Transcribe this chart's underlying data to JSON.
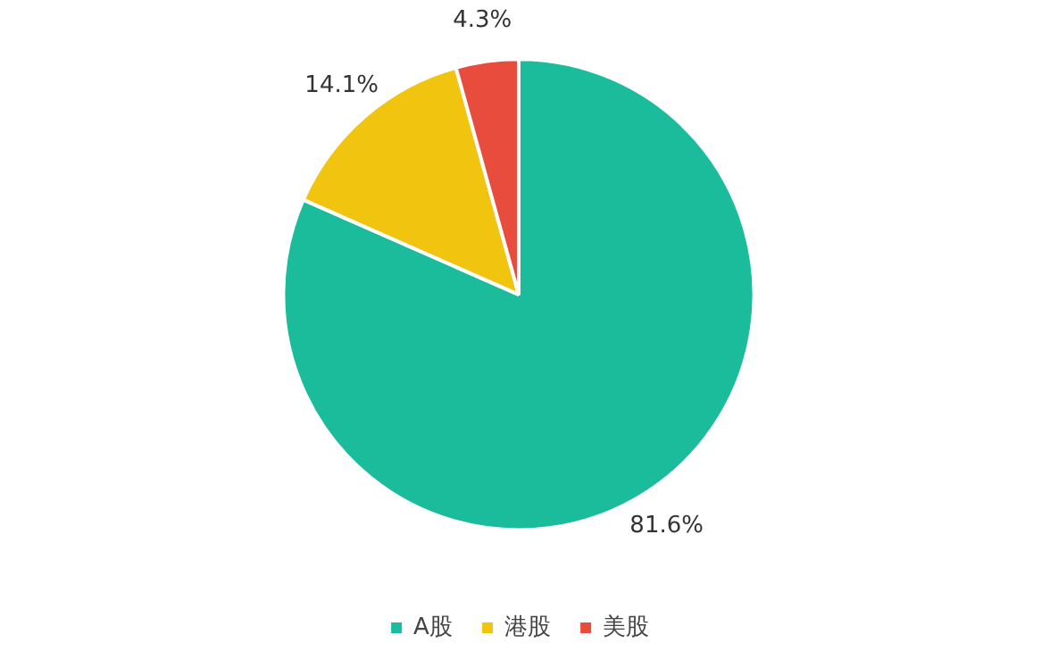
{
  "chart_data": {
    "type": "pie",
    "categories": [
      "A股",
      "港股",
      "美股"
    ],
    "values": [
      81.6,
      14.1,
      4.3
    ],
    "value_labels": [
      "81.6%",
      "14.1%",
      "4.3%"
    ],
    "colors": [
      "#1abc9c",
      "#f1c40f",
      "#e74c3c"
    ],
    "legend": "bottom"
  }
}
